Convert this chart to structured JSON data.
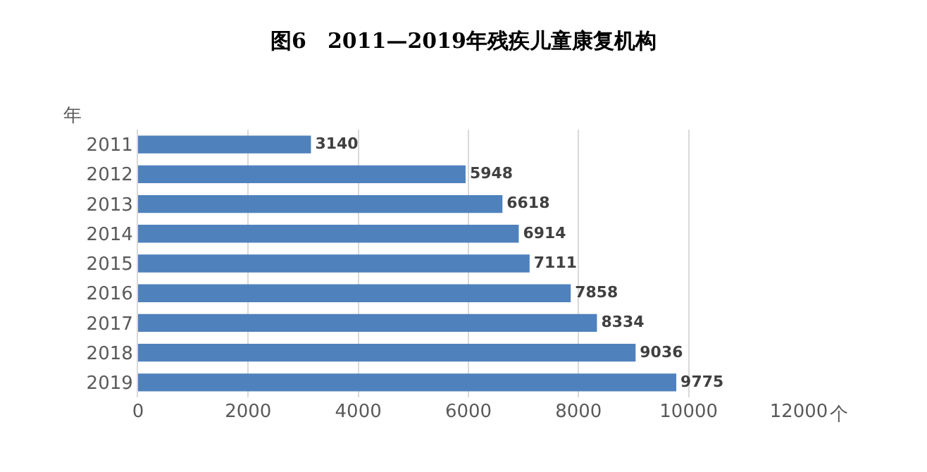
{
  "chart_data": {
    "type": "bar",
    "orientation": "horizontal",
    "title": "图6　2011—2019年残疾儿童康复机构",
    "ylabel": "年",
    "xlabel": "个",
    "categories": [
      "2011",
      "2012",
      "2013",
      "2014",
      "2015",
      "2016",
      "2017",
      "2018",
      "2019"
    ],
    "values": [
      3140,
      5948,
      6618,
      6914,
      7111,
      7858,
      8334,
      9036,
      9775
    ],
    "color": "#4f81bd",
    "xlim": [
      0,
      12000
    ],
    "xticks": [
      0,
      2000,
      4000,
      6000,
      8000,
      10000,
      12000
    ],
    "grid": "x",
    "data_labels": true
  }
}
